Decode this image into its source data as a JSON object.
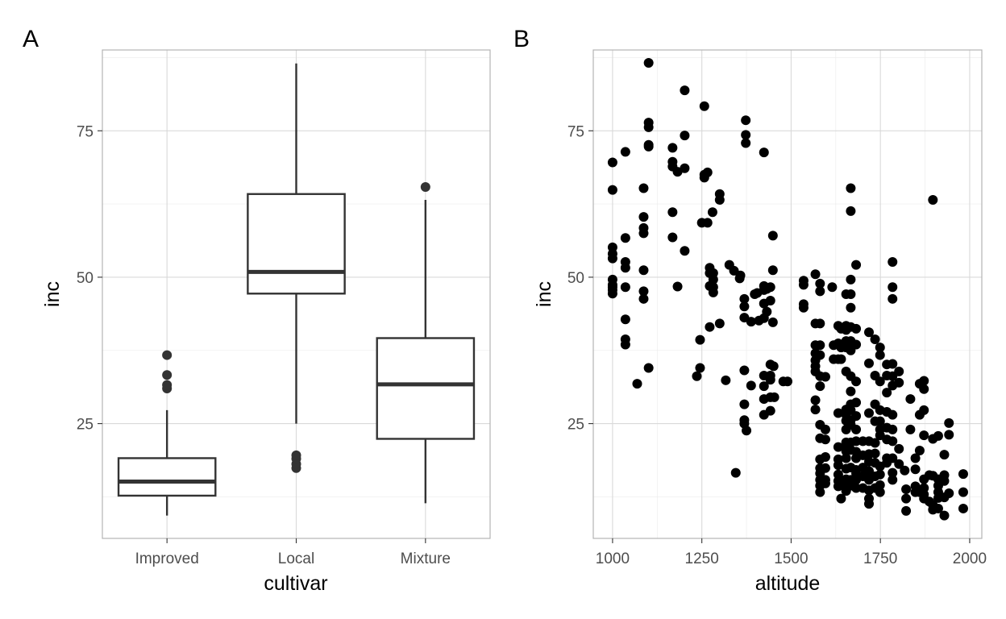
{
  "chart_data": [
    {
      "panel": "A",
      "type": "box",
      "xlabel": "cultivar",
      "ylabel": "inc",
      "ylim": [
        5.4,
        88.8
      ],
      "y_ticks": [
        25,
        50,
        75
      ],
      "y_tick_labels": [
        "25",
        "50",
        "75"
      ],
      "categories": [
        "Improved",
        "Local",
        "Mixture"
      ],
      "boxes": [
        {
          "category": "Improved",
          "whisker_low": 9.3,
          "q1": 12.7,
          "median": 15.1,
          "q3": 19.1,
          "whisker_high": 27.3,
          "outliers": [
            31.0,
            31.6,
            33.3,
            36.7
          ]
        },
        {
          "category": "Local",
          "whisker_low": 25.0,
          "q1": 47.2,
          "median": 50.9,
          "q3": 64.2,
          "whisker_high": 86.5,
          "outliers": [
            17.4,
            18.1,
            19.0,
            19.6
          ]
        },
        {
          "category": "Mixture",
          "whisker_low": 11.4,
          "q1": 22.4,
          "median": 31.7,
          "q3": 39.6,
          "whisker_high": 63.2,
          "outliers": [
            65.4
          ]
        }
      ],
      "grid": true
    },
    {
      "panel": "B",
      "type": "scatter",
      "xlabel": "altitude",
      "ylabel": "inc",
      "xlim": [
        946,
        2034
      ],
      "ylim": [
        5.4,
        88.8
      ],
      "x_ticks": [
        1000,
        1250,
        1500,
        1750,
        2000
      ],
      "x_tick_labels": [
        "1000",
        "1250",
        "1500",
        "1750",
        "2000"
      ],
      "y_ticks": [
        25,
        50,
        75
      ],
      "y_tick_labels": [
        "25",
        "50",
        "75"
      ],
      "grid": true,
      "points": [
        [
          1000,
          69.6
        ],
        [
          1000,
          64.9
        ],
        [
          1000,
          55.1
        ],
        [
          1000,
          54.0
        ],
        [
          1000,
          53.2
        ],
        [
          1000,
          49.6
        ],
        [
          1000,
          48.7
        ],
        [
          1000,
          47.8
        ],
        [
          1000,
          47.2
        ],
        [
          1000,
          48.3
        ],
        [
          1036,
          71.4
        ],
        [
          1036,
          56.7
        ],
        [
          1036,
          52.6
        ],
        [
          1036,
          51.6
        ],
        [
          1036,
          48.3
        ],
        [
          1036,
          42.8
        ],
        [
          1036,
          39.4
        ],
        [
          1036,
          38.5
        ],
        [
          1069,
          31.8
        ],
        [
          1087,
          65.2
        ],
        [
          1087,
          58.4
        ],
        [
          1087,
          57.5
        ],
        [
          1087,
          60.3
        ],
        [
          1087,
          51.2
        ],
        [
          1087,
          47.6
        ],
        [
          1087,
          46.3
        ],
        [
          1101,
          86.6
        ],
        [
          1101,
          76.4
        ],
        [
          1101,
          75.6
        ],
        [
          1101,
          72.6
        ],
        [
          1101,
          72.3
        ],
        [
          1101,
          34.5
        ],
        [
          1168,
          72.1
        ],
        [
          1168,
          69.7
        ],
        [
          1168,
          68.9
        ],
        [
          1168,
          61.1
        ],
        [
          1168,
          56.8
        ],
        [
          1182,
          68.0
        ],
        [
          1182,
          48.4
        ],
        [
          1202,
          81.9
        ],
        [
          1202,
          74.2
        ],
        [
          1202,
          68.6
        ],
        [
          1202,
          54.5
        ],
        [
          1236,
          33.1
        ],
        [
          1245,
          39.3
        ],
        [
          1245,
          34.5
        ],
        [
          1250,
          59.3
        ],
        [
          1257,
          79.2
        ],
        [
          1257,
          67.5
        ],
        [
          1257,
          67.0
        ],
        [
          1266,
          67.9
        ],
        [
          1266,
          59.3
        ],
        [
          1272,
          51.6
        ],
        [
          1272,
          50.7
        ],
        [
          1272,
          48.5
        ],
        [
          1272,
          41.5
        ],
        [
          1280,
          61.1
        ],
        [
          1282,
          50.7
        ],
        [
          1282,
          49.6
        ],
        [
          1282,
          48.3
        ],
        [
          1282,
          47.4
        ],
        [
          1300,
          64.2
        ],
        [
          1300,
          63.2
        ],
        [
          1300,
          42.1
        ],
        [
          1317,
          32.4
        ],
        [
          1327,
          52.1
        ],
        [
          1340,
          51.1
        ],
        [
          1345,
          16.6
        ],
        [
          1356,
          49.8
        ],
        [
          1358,
          50.3
        ],
        [
          1369,
          46.3
        ],
        [
          1369,
          45.0
        ],
        [
          1369,
          43.1
        ],
        [
          1369,
          34.1
        ],
        [
          1369,
          28.3
        ],
        [
          1369,
          25.6
        ],
        [
          1369,
          25.0
        ],
        [
          1375,
          23.8
        ],
        [
          1373,
          76.8
        ],
        [
          1373,
          74.3
        ],
        [
          1373,
          72.9
        ],
        [
          1388,
          42.4
        ],
        [
          1388,
          31.5
        ],
        [
          1398,
          47.1
        ],
        [
          1405,
          47.3
        ],
        [
          1410,
          42.6
        ],
        [
          1424,
          71.3
        ],
        [
          1424,
          48.5
        ],
        [
          1424,
          47.8
        ],
        [
          1424,
          45.5
        ],
        [
          1424,
          43.0
        ],
        [
          1424,
          33.2
        ],
        [
          1424,
          31.4
        ],
        [
          1424,
          29.2
        ],
        [
          1424,
          26.5
        ],
        [
          1432,
          48.0
        ],
        [
          1432,
          44.1
        ],
        [
          1442,
          48.3
        ],
        [
          1442,
          46.0
        ],
        [
          1442,
          35.1
        ],
        [
          1442,
          33.2
        ],
        [
          1442,
          32.5
        ],
        [
          1442,
          29.5
        ],
        [
          1442,
          27.2
        ],
        [
          1449,
          57.1
        ],
        [
          1449,
          51.2
        ],
        [
          1449,
          42.3
        ],
        [
          1451,
          34.8
        ],
        [
          1453,
          29.5
        ],
        [
          1478,
          32.2
        ],
        [
          1490,
          32.2
        ],
        [
          1535,
          49.4
        ],
        [
          1535,
          48.7
        ],
        [
          1535,
          45.4
        ],
        [
          1535,
          44.8
        ],
        [
          1568,
          50.5
        ],
        [
          1568,
          42.1
        ],
        [
          1568,
          38.4
        ],
        [
          1568,
          37.0
        ],
        [
          1568,
          35.8
        ],
        [
          1568,
          34.8
        ],
        [
          1568,
          33.9
        ],
        [
          1568,
          29.0
        ],
        [
          1568,
          27.4
        ],
        [
          1581,
          48.9
        ],
        [
          1581,
          47.6
        ],
        [
          1581,
          42.1
        ],
        [
          1581,
          38.4
        ],
        [
          1581,
          36.7
        ],
        [
          1581,
          33.1
        ],
        [
          1581,
          31.4
        ],
        [
          1581,
          24.8
        ],
        [
          1581,
          22.5
        ],
        [
          1581,
          18.9
        ],
        [
          1581,
          17.4
        ],
        [
          1581,
          16.5
        ],
        [
          1581,
          15.4
        ],
        [
          1581,
          14.4
        ],
        [
          1581,
          13.3
        ],
        [
          1596,
          24.0
        ],
        [
          1596,
          22.3
        ],
        [
          1596,
          19.3
        ],
        [
          1596,
          17.4
        ],
        [
          1596,
          15.4
        ],
        [
          1596,
          14.8
        ],
        [
          1596,
          33.0
        ],
        [
          1615,
          48.3
        ],
        [
          1619,
          38.4
        ],
        [
          1619,
          36.0
        ],
        [
          1632,
          41.7
        ],
        [
          1632,
          38.7
        ],
        [
          1632,
          36.0
        ],
        [
          1632,
          26.8
        ],
        [
          1632,
          21.0
        ],
        [
          1632,
          18.9
        ],
        [
          1632,
          17.9
        ],
        [
          1632,
          16.3
        ],
        [
          1632,
          15.2
        ],
        [
          1632,
          14.3
        ],
        [
          1640,
          41.2
        ],
        [
          1640,
          38.0
        ],
        [
          1640,
          36.0
        ],
        [
          1640,
          12.2
        ],
        [
          1654,
          47.1
        ],
        [
          1654,
          41.7
        ],
        [
          1654,
          41.0
        ],
        [
          1654,
          39.1
        ],
        [
          1654,
          38.0
        ],
        [
          1654,
          33.9
        ],
        [
          1654,
          27.4
        ],
        [
          1654,
          26.5
        ],
        [
          1654,
          25.5
        ],
        [
          1654,
          24.0
        ],
        [
          1654,
          21.8
        ],
        [
          1654,
          21.2
        ],
        [
          1654,
          20.3
        ],
        [
          1654,
          19.1
        ],
        [
          1654,
          17.3
        ],
        [
          1654,
          15.5
        ],
        [
          1654,
          14.4
        ],
        [
          1654,
          13.5
        ],
        [
          1667,
          65.2
        ],
        [
          1667,
          61.3
        ],
        [
          1667,
          49.6
        ],
        [
          1667,
          47.1
        ],
        [
          1667,
          44.8
        ],
        [
          1667,
          41.5
        ],
        [
          1667,
          39.1
        ],
        [
          1667,
          37.5
        ],
        [
          1667,
          33.1
        ],
        [
          1667,
          30.5
        ],
        [
          1667,
          28.3
        ],
        [
          1667,
          27.3
        ],
        [
          1667,
          25.6
        ],
        [
          1667,
          24.8
        ],
        [
          1667,
          21.8
        ],
        [
          1667,
          20.5
        ],
        [
          1667,
          17.5
        ],
        [
          1667,
          15.4
        ],
        [
          1667,
          14.4
        ],
        [
          1682,
          52.1
        ],
        [
          1682,
          41.2
        ],
        [
          1682,
          38.5
        ],
        [
          1682,
          32.2
        ],
        [
          1682,
          28.6
        ],
        [
          1682,
          26.3
        ],
        [
          1682,
          24.0
        ],
        [
          1682,
          22.0
        ],
        [
          1682,
          20.2
        ],
        [
          1682,
          19.1
        ],
        [
          1682,
          17.1
        ],
        [
          1682,
          16.5
        ],
        [
          1682,
          15.4
        ],
        [
          1682,
          14.0
        ],
        [
          1701,
          22.0
        ],
        [
          1701,
          19.6
        ],
        [
          1701,
          17.5
        ],
        [
          1701,
          16.0
        ],
        [
          1701,
          14.0
        ],
        [
          1718,
          40.6
        ],
        [
          1718,
          35.3
        ],
        [
          1718,
          26.8
        ],
        [
          1718,
          22.0
        ],
        [
          1718,
          19.8
        ],
        [
          1718,
          18.5
        ],
        [
          1718,
          16.9
        ],
        [
          1718,
          15.4
        ],
        [
          1718,
          13.6
        ],
        [
          1718,
          12.2
        ],
        [
          1718,
          11.3
        ],
        [
          1735,
          39.4
        ],
        [
          1735,
          33.2
        ],
        [
          1735,
          28.3
        ],
        [
          1735,
          25.4
        ],
        [
          1735,
          21.7
        ],
        [
          1735,
          19.9
        ],
        [
          1735,
          18.3
        ],
        [
          1735,
          16.0
        ],
        [
          1735,
          14.0
        ],
        [
          1749,
          38.0
        ],
        [
          1749,
          36.7
        ],
        [
          1749,
          32.2
        ],
        [
          1749,
          27.3
        ],
        [
          1749,
          25.4
        ],
        [
          1749,
          24.0
        ],
        [
          1749,
          23.0
        ],
        [
          1749,
          17.7
        ],
        [
          1749,
          16.3
        ],
        [
          1749,
          14.5
        ],
        [
          1749,
          13.3
        ],
        [
          1768,
          35.1
        ],
        [
          1768,
          33.2
        ],
        [
          1768,
          30.3
        ],
        [
          1768,
          27.0
        ],
        [
          1768,
          24.3
        ],
        [
          1768,
          22.3
        ],
        [
          1768,
          19.1
        ],
        [
          1768,
          18.3
        ],
        [
          1784,
          52.6
        ],
        [
          1784,
          48.3
        ],
        [
          1784,
          46.3
        ],
        [
          1784,
          35.2
        ],
        [
          1784,
          33.1
        ],
        [
          1784,
          31.5
        ],
        [
          1784,
          26.5
        ],
        [
          1784,
          24.0
        ],
        [
          1784,
          22.0
        ],
        [
          1784,
          19.1
        ],
        [
          1784,
          16.6
        ],
        [
          1784,
          15.4
        ],
        [
          1802,
          33.9
        ],
        [
          1802,
          32.0
        ],
        [
          1802,
          20.7
        ],
        [
          1802,
          18.1
        ],
        [
          1818,
          17.0
        ],
        [
          1822,
          13.8
        ],
        [
          1822,
          12.2
        ],
        [
          1822,
          10.1
        ],
        [
          1834,
          29.2
        ],
        [
          1834,
          24.0
        ],
        [
          1848,
          19.1
        ],
        [
          1848,
          17.2
        ],
        [
          1848,
          14.3
        ],
        [
          1848,
          13.3
        ],
        [
          1860,
          31.8
        ],
        [
          1860,
          26.5
        ],
        [
          1860,
          20.4
        ],
        [
          1860,
          13.3
        ],
        [
          1872,
          32.3
        ],
        [
          1872,
          30.9
        ],
        [
          1872,
          27.3
        ],
        [
          1872,
          23.0
        ],
        [
          1872,
          15.5
        ],
        [
          1872,
          14.0
        ],
        [
          1872,
          12.9
        ],
        [
          1872,
          12.2
        ],
        [
          1887,
          16.2
        ],
        [
          1887,
          11.7
        ],
        [
          1897,
          63.2
        ],
        [
          1897,
          22.4
        ],
        [
          1897,
          16.1
        ],
        [
          1897,
          11.1
        ],
        [
          1897,
          10.3
        ],
        [
          1912,
          22.9
        ],
        [
          1912,
          15.5
        ],
        [
          1912,
          14.4
        ],
        [
          1912,
          13.3
        ],
        [
          1912,
          12.3
        ],
        [
          1912,
          10.5
        ],
        [
          1929,
          19.7
        ],
        [
          1929,
          16.2
        ],
        [
          1929,
          15.2
        ],
        [
          1929,
          12.4
        ],
        [
          1929,
          9.3
        ],
        [
          1942,
          25.1
        ],
        [
          1942,
          23.1
        ],
        [
          1942,
          13.1
        ],
        [
          1982,
          16.4
        ],
        [
          1982,
          13.3
        ],
        [
          1982,
          10.5
        ]
      ]
    }
  ],
  "panel_tags": {
    "A": "A",
    "B": "B"
  }
}
